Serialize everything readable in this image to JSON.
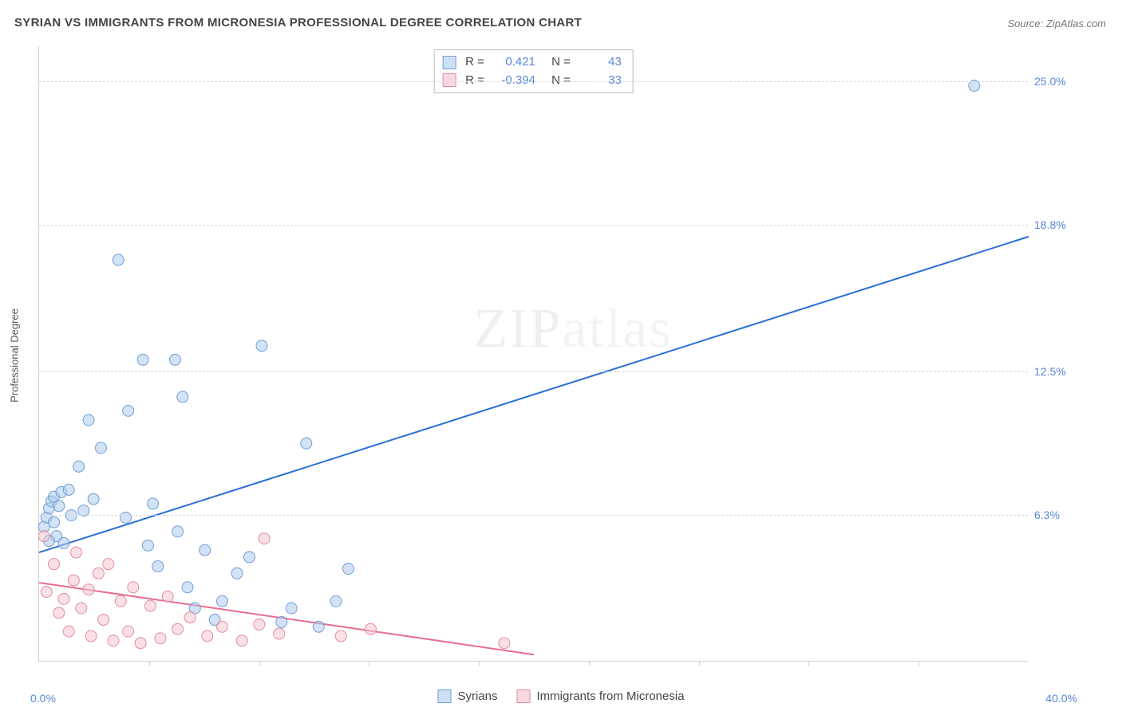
{
  "title": "SYRIAN VS IMMIGRANTS FROM MICRONESIA PROFESSIONAL DEGREE CORRELATION CHART",
  "source": "Source: ZipAtlas.com",
  "ylabel": "Professional Degree",
  "watermark_a": "ZIP",
  "watermark_b": "atlas",
  "chart": {
    "type": "scatter",
    "xlim": [
      0,
      40.0
    ],
    "ylim": [
      0,
      26.5
    ],
    "x_min_label": "0.0%",
    "x_max_label": "40.0%",
    "y_ticks": [
      6.3,
      12.5,
      18.8,
      25.0
    ],
    "y_tick_labels": [
      "6.3%",
      "12.5%",
      "18.8%",
      "25.0%"
    ],
    "x_tick_positions": [
      4.44,
      8.89,
      13.33,
      17.78,
      22.22,
      26.67,
      31.11,
      35.56
    ],
    "grid_color": "#d9d9d9",
    "background_color": "#ffffff",
    "axis_color": "#cfcfcf",
    "marker_radius": 7,
    "marker_opacity": 0.55,
    "series": [
      {
        "name": "Syrians",
        "key": "syrians",
        "color_fill": "#aecbeb",
        "color_stroke": "#6f9fd8",
        "swatch_fill": "#cfe0f4",
        "swatch_border": "#6f9fd8",
        "line_color": "#2a6fd6",
        "r_label": "R =",
        "r_value": "0.421",
        "n_label": "N =",
        "n_value": "43",
        "regression": {
          "x1": 0,
          "y1": 4.7,
          "x2": 40,
          "y2": 18.3
        },
        "points": [
          [
            0.2,
            5.8
          ],
          [
            0.3,
            6.2
          ],
          [
            0.4,
            6.6
          ],
          [
            0.5,
            6.9
          ],
          [
            0.6,
            6.0
          ],
          [
            0.6,
            7.1
          ],
          [
            0.7,
            5.4
          ],
          [
            0.8,
            6.7
          ],
          [
            0.9,
            7.3
          ],
          [
            1.0,
            5.1
          ],
          [
            1.2,
            7.4
          ],
          [
            1.3,
            6.3
          ],
          [
            1.6,
            8.4
          ],
          [
            2.0,
            10.4
          ],
          [
            2.2,
            7.0
          ],
          [
            2.5,
            9.2
          ],
          [
            3.2,
            17.3
          ],
          [
            3.5,
            6.2
          ],
          [
            3.6,
            10.8
          ],
          [
            4.2,
            13.0
          ],
          [
            4.4,
            5.0
          ],
          [
            4.6,
            6.8
          ],
          [
            4.8,
            4.1
          ],
          [
            5.5,
            13.0
          ],
          [
            5.6,
            5.6
          ],
          [
            5.8,
            11.4
          ],
          [
            6.0,
            3.2
          ],
          [
            6.3,
            2.3
          ],
          [
            6.7,
            4.8
          ],
          [
            7.1,
            1.8
          ],
          [
            7.4,
            2.6
          ],
          [
            8.0,
            3.8
          ],
          [
            8.5,
            4.5
          ],
          [
            9.0,
            13.6
          ],
          [
            9.8,
            1.7
          ],
          [
            10.2,
            2.3
          ],
          [
            10.8,
            9.4
          ],
          [
            11.3,
            1.5
          ],
          [
            12.0,
            2.6
          ],
          [
            12.5,
            4.0
          ],
          [
            37.8,
            24.8
          ],
          [
            1.8,
            6.5
          ],
          [
            0.4,
            5.2
          ]
        ]
      },
      {
        "name": "Immigrants from Micronesia",
        "key": "micronesia",
        "color_fill": "#f4c6cf",
        "color_stroke": "#e38ca0",
        "swatch_fill": "#f7d9df",
        "swatch_border": "#e38ca0",
        "line_color": "#e66f8f",
        "r_label": "R =",
        "r_value": "-0.394",
        "n_label": "N =",
        "n_value": "33",
        "regression": {
          "x1": 0,
          "y1": 3.4,
          "x2": 20,
          "y2": 0.3
        },
        "points": [
          [
            0.2,
            5.4
          ],
          [
            0.3,
            3.0
          ],
          [
            0.6,
            4.2
          ],
          [
            0.8,
            2.1
          ],
          [
            1.0,
            2.7
          ],
          [
            1.2,
            1.3
          ],
          [
            1.4,
            3.5
          ],
          [
            1.5,
            4.7
          ],
          [
            1.7,
            2.3
          ],
          [
            2.0,
            3.1
          ],
          [
            2.1,
            1.1
          ],
          [
            2.4,
            3.8
          ],
          [
            2.6,
            1.8
          ],
          [
            2.8,
            4.2
          ],
          [
            3.0,
            0.9
          ],
          [
            3.3,
            2.6
          ],
          [
            3.6,
            1.3
          ],
          [
            3.8,
            3.2
          ],
          [
            4.1,
            0.8
          ],
          [
            4.5,
            2.4
          ],
          [
            4.9,
            1.0
          ],
          [
            5.2,
            2.8
          ],
          [
            5.6,
            1.4
          ],
          [
            6.1,
            1.9
          ],
          [
            6.8,
            1.1
          ],
          [
            7.4,
            1.5
          ],
          [
            8.2,
            0.9
          ],
          [
            8.9,
            1.6
          ],
          [
            9.1,
            5.3
          ],
          [
            9.7,
            1.2
          ],
          [
            12.2,
            1.1
          ],
          [
            13.4,
            1.4
          ],
          [
            18.8,
            0.8
          ]
        ]
      }
    ]
  },
  "legend": {
    "series1": "Syrians",
    "series2": "Immigrants from Micronesia"
  }
}
